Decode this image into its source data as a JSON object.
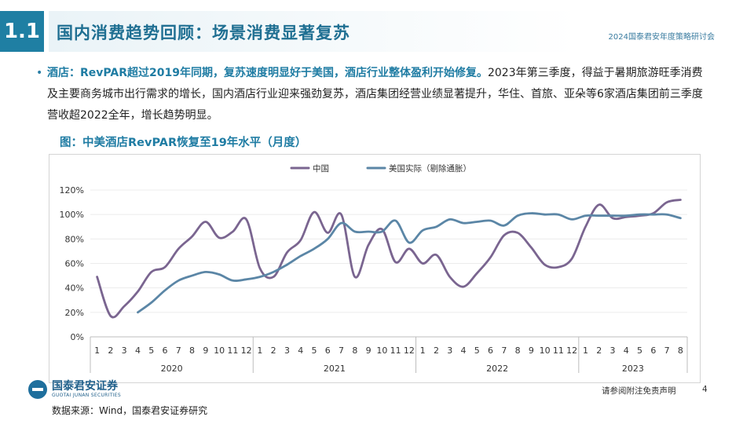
{
  "slide": {
    "section_number": "1.1",
    "title": "国内消费趋势回顾：场景消费显著复苏",
    "event": "2024国泰君安年度策略研讨会",
    "bullet_lead": "酒店：RevPAR超过2019年同期，复苏速度明显好于美国，酒店行业整体盈利开始修复。",
    "bullet_body": "2023年第三季度，得益于暑期旅游旺季消费及主要商务城市出行需求的增长，国内酒店行业迎来强劲复苏，酒店集团经营业绩显著提升，华住、首旅、亚朵等6家酒店集团前三季度营收超2022全年，增长趋势明显。",
    "figure_title": "图：中美酒店RevPAR恢复至19年水平（月度）",
    "brand_name": "国泰君安证券",
    "brand_name_en": "GUOTAI JUNAN SECURITIES",
    "disclaimer": "请参阅附注免责声明",
    "page_number": "4",
    "source": "数据来源：Wind，国泰君安证券研究"
  },
  "chart_data": {
    "type": "line",
    "title": "中美酒店RevPAR恢复至19年水平（月度）",
    "xlabel": "",
    "ylabel": "",
    "ylim": [
      0,
      120
    ],
    "yticks": [
      "0%",
      "20%",
      "40%",
      "60%",
      "80%",
      "100%",
      "120%"
    ],
    "grid": true,
    "legend_position": "top",
    "categories": [
      "1",
      "2",
      "3",
      "4",
      "5",
      "6",
      "7",
      "8",
      "9",
      "10",
      "11",
      "12",
      "1",
      "2",
      "3",
      "4",
      "5",
      "6",
      "7",
      "8",
      "9",
      "10",
      "11",
      "12",
      "1",
      "2",
      "3",
      "4",
      "5",
      "6",
      "7",
      "8",
      "9",
      "10",
      "11",
      "12",
      "1",
      "2",
      "3",
      "4",
      "5",
      "6",
      "7",
      "8"
    ],
    "year_groups": [
      {
        "label": "2020",
        "months": 12
      },
      {
        "label": "2021",
        "months": 12
      },
      {
        "label": "2022",
        "months": 12
      },
      {
        "label": "2023",
        "months": 8
      }
    ],
    "series": [
      {
        "name": "中国",
        "color": "#7a6590",
        "values": [
          49,
          17,
          25,
          37,
          53,
          57,
          72,
          82,
          94,
          81,
          86,
          96,
          56,
          49,
          69,
          79,
          102,
          85,
          100,
          49,
          75,
          88,
          61,
          72,
          60,
          67,
          49,
          41,
          52,
          65,
          83,
          85,
          73,
          59,
          57,
          64,
          90,
          108,
          97,
          98,
          99,
          101,
          110,
          112
        ]
      },
      {
        "name": "美国实际（剔除通胀）",
        "color": "#5b86a6",
        "values": [
          null,
          null,
          null,
          20,
          28,
          38,
          46,
          50,
          53,
          51,
          46,
          47,
          49,
          53,
          59,
          66,
          72,
          80,
          93,
          86,
          86,
          86,
          95,
          77,
          87,
          90,
          96,
          93,
          94,
          95,
          91,
          99,
          101,
          100,
          100,
          96,
          99,
          99,
          99,
          99,
          100,
          100,
          100,
          97
        ]
      }
    ]
  }
}
